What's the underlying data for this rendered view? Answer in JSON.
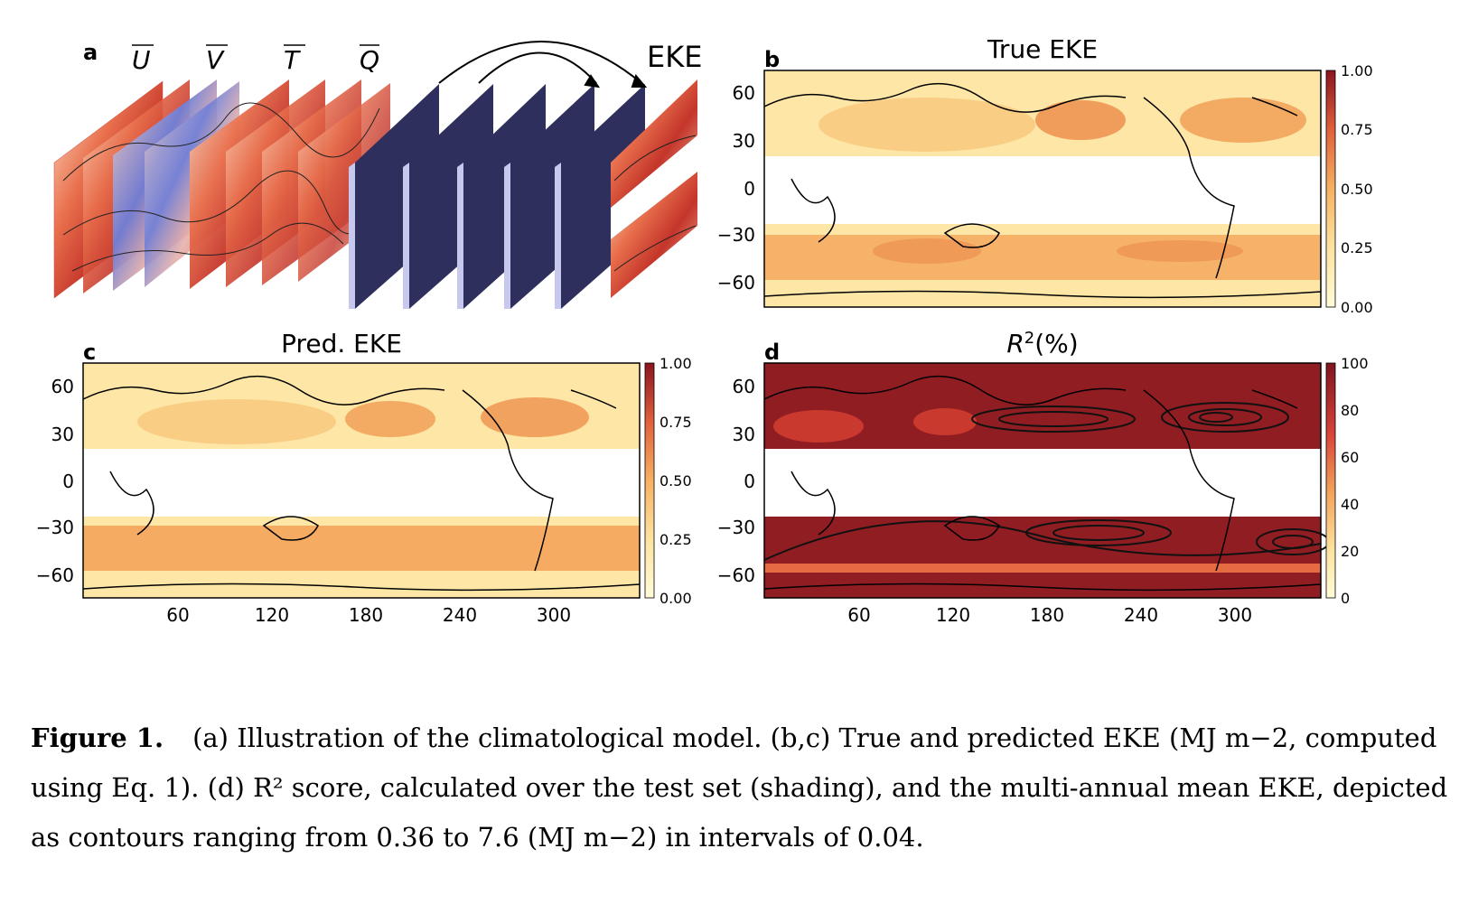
{
  "panels": {
    "a": {
      "letter": "a",
      "inputs": [
        "U",
        "V",
        "T",
        "Q"
      ],
      "output": "EKE"
    },
    "b": {
      "letter": "b",
      "title": "True EKE",
      "cbar_ticks": [
        "1.00",
        "0.75",
        "0.50",
        "0.25",
        "0.00"
      ]
    },
    "c": {
      "letter": "c",
      "title": "Pred. EKE",
      "cbar_ticks": [
        "1.00",
        "0.75",
        "0.50",
        "0.25",
        "0.00"
      ]
    },
    "d": {
      "letter": "d",
      "title_base": "R",
      "title_sup": "2",
      "title_rest": "(%)",
      "cbar_ticks": [
        "100",
        "80",
        "60",
        "40",
        "20",
        "0"
      ]
    }
  },
  "axes": {
    "lat_ticks": [
      "60",
      "30",
      "0",
      "−30",
      "−60"
    ],
    "lon_ticks": [
      "60",
      "120",
      "180",
      "240",
      "300"
    ]
  },
  "caption": {
    "label": "Figure 1.",
    "text": "(a) Illustration of the climatological model. (b,c) True and predicted EKE (MJ m−2, computed using Eq. 1). (d) R² score, calculated over the test set (shading), and the multi-annual mean EKE, depicted as contours ranging from 0.36 to 7.6 (MJ m−2) in intervals of 0.04."
  },
  "colors": {
    "eke_light": "#fdeaa6",
    "eke_mid": "#f7b567",
    "eke_orange": "#ee8a4e",
    "r2_dark": "#8f1d22",
    "cnn_block": "#2e2f5c"
  }
}
